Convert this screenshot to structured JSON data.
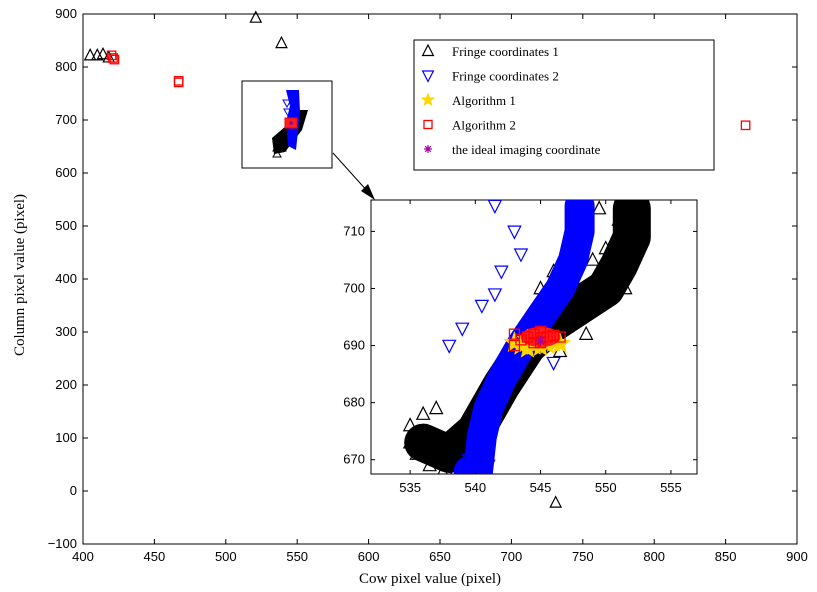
{
  "chart_data": {
    "type": "scatter",
    "xlabel": "Cow pixel value (pixel)",
    "ylabel": "Column pixel value (pixel)",
    "xlim": [
      400,
      900
    ],
    "ylim": [
      -100,
      900
    ],
    "xticks": [
      "400",
      "450",
      "500",
      "550",
      "600",
      "650",
      "700",
      "750",
      "800",
      "850",
      "900"
    ],
    "yticks": [
      "−100",
      "0",
      "100",
      "200",
      "300",
      "400",
      "500",
      "600",
      "700",
      "800",
      "900"
    ],
    "legend_position": "top-right",
    "series": [
      {
        "name": "Fringe coordinates 1",
        "marker": "triangle-up",
        "color": "#000000",
        "points": [
          [
            405,
            822
          ],
          [
            410,
            822
          ],
          [
            414,
            824
          ],
          [
            418,
            818
          ],
          [
            521,
            893
          ],
          [
            539,
            845
          ],
          [
            731,
            -22
          ]
        ]
      },
      {
        "name": "Fringe coordinates 2",
        "marker": "triangle-down",
        "color": "#0000ff",
        "points": []
      },
      {
        "name": "Algorithm 1",
        "marker": "star",
        "color": "#ffd700",
        "points": []
      },
      {
        "name": "Algorithm 2",
        "marker": "square",
        "color": "#ff0000",
        "points": [
          [
            420,
            822
          ],
          [
            421,
            817
          ],
          [
            422,
            814
          ],
          [
            467,
            774
          ],
          [
            467,
            771
          ],
          [
            864,
            690
          ]
        ]
      },
      {
        "name": "the ideal imaging coordinate",
        "marker": "asterisk",
        "color": "#a000a0",
        "points": []
      }
    ],
    "inset": {
      "xlim": [
        532,
        557
      ],
      "ylim": [
        667.5,
        715.5
      ],
      "xticks": [
        "535",
        "540",
        "545",
        "550",
        "555"
      ],
      "yticks": [
        "670",
        "680",
        "690",
        "700",
        "710"
      ],
      "fringe1_band": [
        [
          536,
          673
        ],
        [
          538,
          671
        ],
        [
          540,
          675
        ],
        [
          542,
          683
        ],
        [
          544,
          690
        ],
        [
          546,
          694
        ],
        [
          548,
          697
        ],
        [
          550,
          700
        ],
        [
          551,
          704
        ],
        [
          552,
          709
        ],
        [
          552,
          714
        ]
      ],
      "fringe1_points": [
        [
          535,
          676
        ],
        [
          535.5,
          671
        ],
        [
          536,
          678
        ],
        [
          536.5,
          669
        ],
        [
          537,
          679
        ],
        [
          537.5,
          667.8
        ],
        [
          538.5,
          668
        ],
        [
          541,
          680
        ],
        [
          541.5,
          683
        ],
        [
          542,
          686
        ],
        [
          544.5,
          693
        ],
        [
          545,
          700
        ],
        [
          546,
          703
        ],
        [
          547.5,
          710
        ],
        [
          548,
          714
        ],
        [
          549.5,
          714
        ],
        [
          549,
          705
        ],
        [
          550,
          707
        ],
        [
          550.5,
          704
        ],
        [
          551,
          701
        ],
        [
          551.5,
          700
        ],
        [
          551,
          712
        ],
        [
          548.5,
          692
        ],
        [
          546.5,
          689
        ],
        [
          543,
          688
        ],
        [
          539.5,
          678
        ],
        [
          536.5,
          674
        ],
        [
          535,
          673
        ]
      ],
      "fringe2_band": [
        [
          539.5,
          668
        ],
        [
          540.2,
          667.8
        ],
        [
          540.5,
          674
        ],
        [
          541,
          679
        ],
        [
          542,
          684
        ],
        [
          543.5,
          690
        ],
        [
          545,
          695
        ],
        [
          546.5,
          700
        ],
        [
          547.5,
          705
        ],
        [
          548,
          710
        ],
        [
          548,
          714.5
        ]
      ],
      "fringe2_points": [
        [
          541.5,
          714.5
        ],
        [
          543,
          710
        ],
        [
          543.5,
          706
        ],
        [
          542,
          703
        ],
        [
          541.5,
          699
        ],
        [
          540.5,
          697
        ],
        [
          539,
          693
        ],
        [
          538,
          690
        ],
        [
          539.5,
          670
        ],
        [
          541,
          669
        ],
        [
          546,
          687
        ]
      ],
      "algorithm1_points": [
        [
          543,
          690.5
        ],
        [
          543.5,
          690
        ],
        [
          544,
          689.5
        ],
        [
          544.5,
          690
        ],
        [
          545,
          689.8
        ],
        [
          545.5,
          690.2
        ],
        [
          546,
          690.5
        ],
        [
          546.5,
          690.3
        ],
        [
          544,
          691
        ],
        [
          545.5,
          691
        ]
      ],
      "algorithm2_points": [
        [
          543,
          692
        ],
        [
          543,
          690
        ],
        [
          543.5,
          691
        ],
        [
          544,
          691.5
        ],
        [
          544.5,
          692
        ],
        [
          545,
          692.5
        ],
        [
          545.5,
          691.5
        ],
        [
          546,
          691.8
        ],
        [
          546.5,
          691.5
        ],
        [
          545,
          690.5
        ],
        [
          544.5,
          690.5
        ],
        [
          545,
          691.3
        ]
      ],
      "ideal_point": [
        545,
        690.8
      ]
    }
  }
}
